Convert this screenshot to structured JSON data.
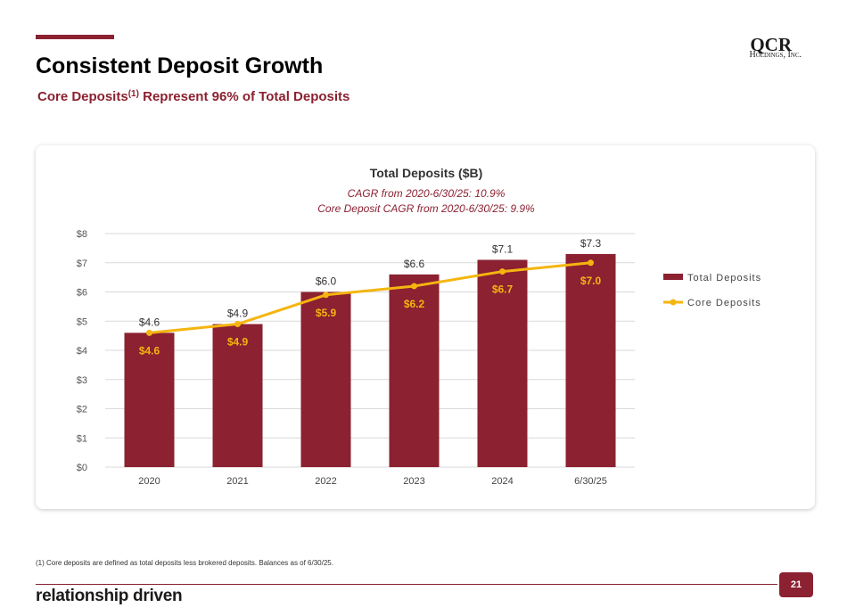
{
  "header": {
    "title": "Consistent Deposit Growth",
    "subtitle_pre": "Core Deposits",
    "subtitle_sup": "(1)",
    "subtitle_post": " Represent 96% of Total Deposits"
  },
  "logo": {
    "line1": "QCR",
    "line2": "Holdings, Inc."
  },
  "footer": {
    "footnote": "(1) Core deposits are defined as total deposits less brokered deposits. Balances as of 6/30/25.",
    "tagline": "relationship driven",
    "page_number": "21"
  },
  "colors": {
    "brand": "#8b2131",
    "line": "#f5b510",
    "grid": "#d9d9d9"
  },
  "chart_data": {
    "type": "bar",
    "title": "Total Deposits ($B)",
    "subtitle_lines": [
      "CAGR from 2020-6/30/25: 10.9%",
      "Core Deposit CAGR from  2020-6/30/25: 9.9%"
    ],
    "categories": [
      "2020",
      "2021",
      "2022",
      "2023",
      "2024",
      "6/30/25"
    ],
    "series": [
      {
        "name": "Total Deposits",
        "type": "bar",
        "color": "#8b2131",
        "values": [
          4.6,
          4.9,
          6.0,
          6.6,
          7.1,
          7.3
        ],
        "labels": [
          "$4.6",
          "$4.9",
          "$6.0",
          "$6.6",
          "$7.1",
          "$7.3"
        ]
      },
      {
        "name": "Core Deposits",
        "type": "line",
        "color": "#f5b510",
        "values": [
          4.6,
          4.9,
          5.9,
          6.2,
          6.7,
          7.0
        ],
        "labels": [
          "$4.6",
          "$4.9",
          "$5.9",
          "$6.2",
          "$6.7",
          "$7.0"
        ]
      }
    ],
    "yticks": [
      "$0",
      "$1",
      "$2",
      "$3",
      "$4",
      "$5",
      "$6",
      "$7",
      "$8"
    ],
    "ylim": [
      0,
      8
    ],
    "grid": true,
    "legend": "right"
  }
}
